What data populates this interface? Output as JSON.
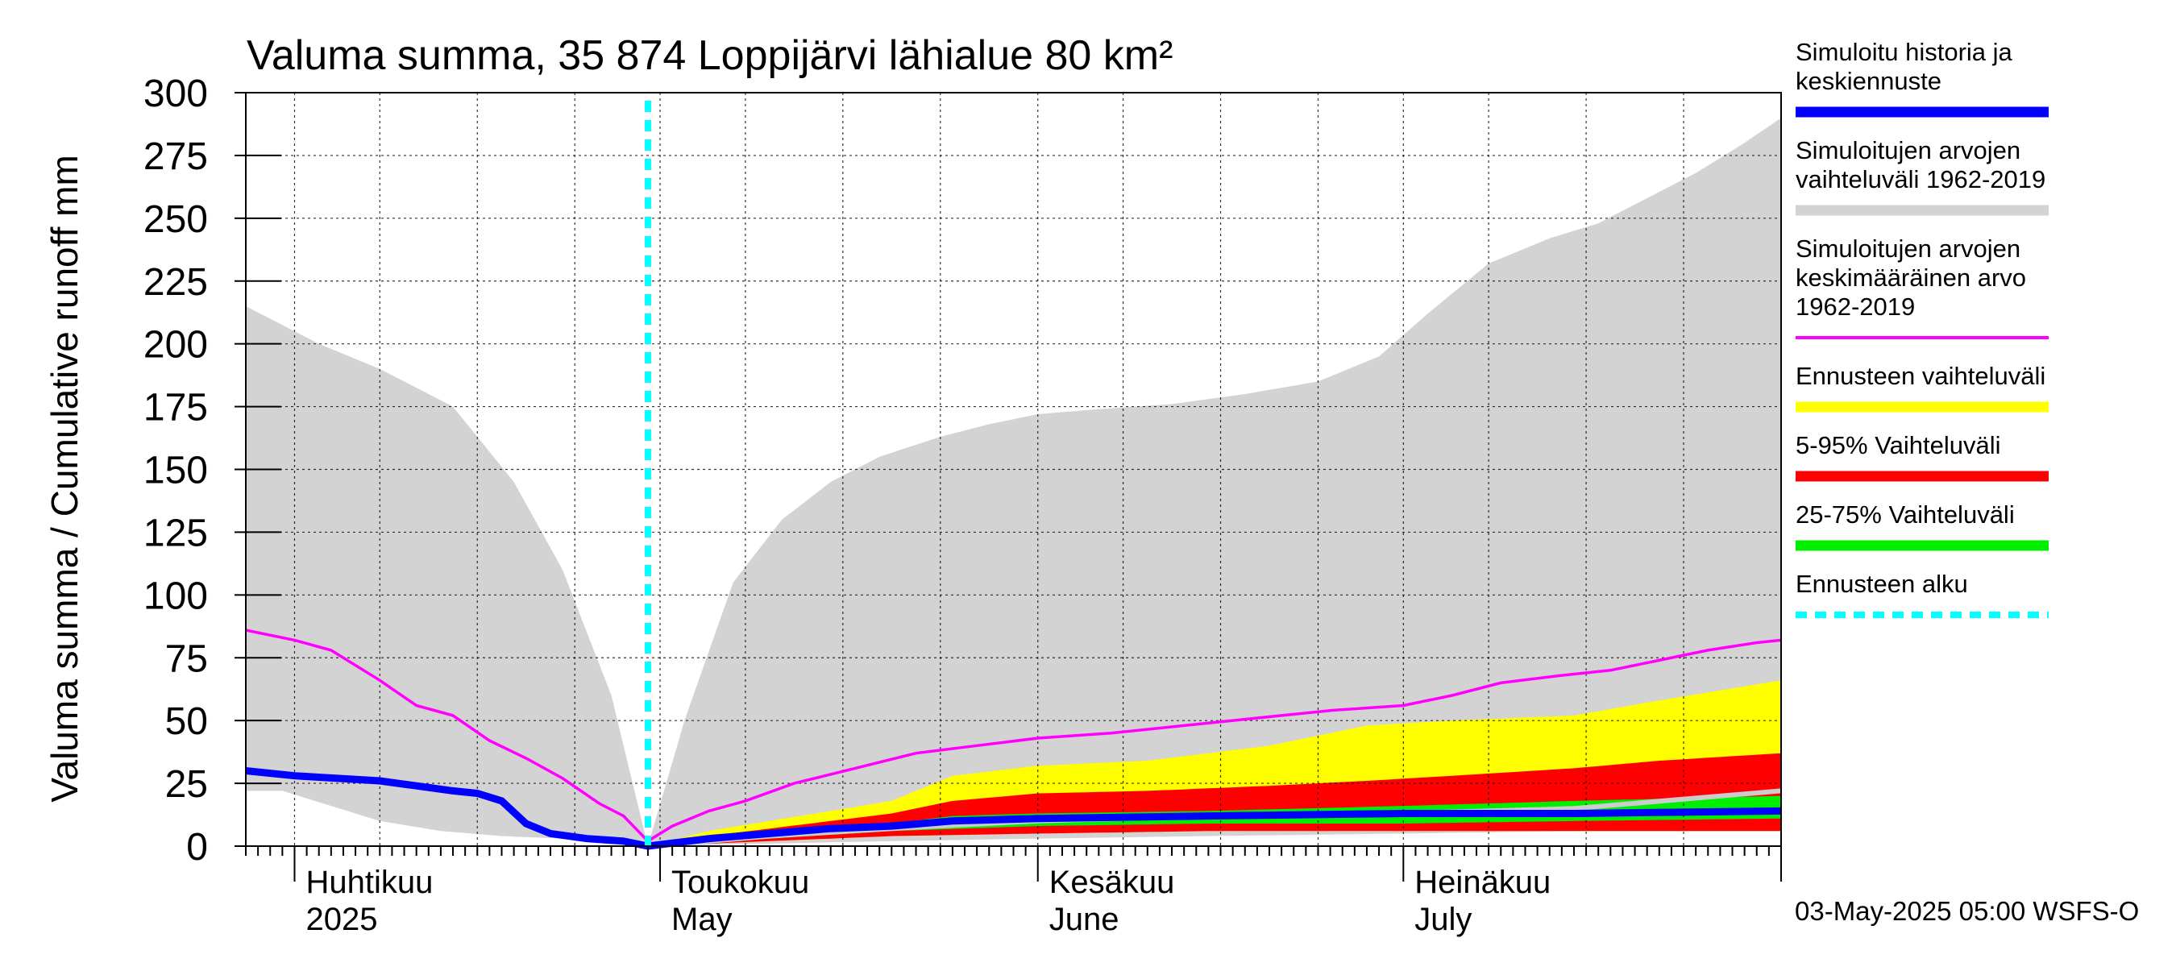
{
  "chart_data": {
    "type": "area",
    "title": "Valuma summa, 35 874 Loppijärvi lähialue 80 km²",
    "ylabel": "Valuma summa / Cumulative runoff    mm",
    "ylim": [
      0,
      300
    ],
    "yticks": [
      0,
      25,
      50,
      75,
      100,
      125,
      150,
      175,
      200,
      225,
      250,
      275,
      300
    ],
    "x_range": [
      "2025-03-28",
      "2025-08-01"
    ],
    "month_labels": [
      {
        "date": "2025-04-01",
        "fi": "Huhtikuu",
        "en": "2025"
      },
      {
        "date": "2025-05-01",
        "fi": "Toukokuu",
        "en": "May"
      },
      {
        "date": "2025-06-01",
        "fi": "Kesäkuu",
        "en": "June"
      },
      {
        "date": "2025-07-01",
        "fi": "Heinäkuu",
        "en": "July"
      }
    ],
    "forecast_start": "2025-04-30",
    "footer": "03-May-2025 05:00 WSFS-O",
    "grid": true,
    "legend_position": "right",
    "colors": {
      "history": "#0000ff",
      "range_1962_2019": "#d3d3d3",
      "mean_1962_2019": "#ff00ff",
      "forecast_range": "#ffff00",
      "p5_95": "#ff0000",
      "p25_75": "#00ee00",
      "forecast_start": "#00ffff",
      "forecast_median": "#cccccc"
    },
    "legend": [
      {
        "label": "Simuloitu historia ja keskiennuste",
        "lines": [
          "Simuloitu historia ja",
          "keskiennuste"
        ],
        "color": "#0000ff",
        "style": "solid"
      },
      {
        "label": "Simuloitujen arvojen vaihteluväli 1962-2019",
        "lines": [
          "Simuloitujen arvojen",
          "vaihteluväli 1962-2019"
        ],
        "color": "#d3d3d3",
        "style": "solid"
      },
      {
        "label": "Simuloitujen arvojen keskimääräinen arvo 1962-2019",
        "lines": [
          "Simuloitujen arvojen",
          "keskimääräinen arvo",
          "   1962-2019"
        ],
        "color": "#ff00ff",
        "style": "thin"
      },
      {
        "label": "Ennusteen vaihteluväli",
        "lines": [
          "Ennusteen vaihteluväli"
        ],
        "color": "#ffff00",
        "style": "solid"
      },
      {
        "label": "5-95% Vaihteluväli",
        "lines": [
          "5-95% Vaihteluväli"
        ],
        "color": "#ff0000",
        "style": "solid"
      },
      {
        "label": "25-75% Vaihteluväli",
        "lines": [
          "25-75% Vaihteluväli"
        ],
        "color": "#00ee00",
        "style": "solid"
      },
      {
        "label": "Ennusteen alku",
        "lines": [
          "Ennusteen alku"
        ],
        "color": "#00ffff",
        "style": "dashed"
      }
    ],
    "series": {
      "range_upper": {
        "x": [
          "2025-03-28",
          "2025-04-03",
          "2025-04-08",
          "2025-04-14",
          "2025-04-19",
          "2025-04-23",
          "2025-04-27",
          "2025-04-30",
          "2025-05-03",
          "2025-05-07",
          "2025-05-11",
          "2025-05-15",
          "2025-05-19",
          "2025-05-24",
          "2025-05-28",
          "2025-06-01",
          "2025-06-06",
          "2025-06-12",
          "2025-06-18",
          "2025-06-24",
          "2025-06-29",
          "2025-07-03",
          "2025-07-08",
          "2025-07-13",
          "2025-07-17",
          "2025-07-21",
          "2025-07-25",
          "2025-07-29",
          "2025-08-01"
        ],
        "values": [
          215,
          200,
          190,
          175,
          145,
          110,
          60,
          0,
          50,
          105,
          130,
          145,
          155,
          163,
          168,
          172,
          174,
          176,
          180,
          185,
          195,
          212,
          232,
          242,
          248,
          258,
          268,
          280,
          290
        ]
      },
      "range_lower": {
        "x": [
          "2025-03-28",
          "2025-03-31",
          "2025-04-04",
          "2025-04-08",
          "2025-04-13",
          "2025-04-18",
          "2025-04-23",
          "2025-04-27",
          "2025-04-30",
          "2025-05-10",
          "2025-05-20",
          "2025-06-01",
          "2025-06-15",
          "2025-07-01",
          "2025-07-15",
          "2025-08-01"
        ],
        "values": [
          22,
          22,
          16,
          10,
          6,
          4,
          3,
          2,
          0,
          1,
          2,
          3,
          4,
          5,
          6,
          7
        ]
      },
      "mean": {
        "x": [
          "2025-03-28",
          "2025-04-01",
          "2025-04-04",
          "2025-04-08",
          "2025-04-11",
          "2025-04-14",
          "2025-04-17",
          "2025-04-20",
          "2025-04-23",
          "2025-04-26",
          "2025-04-28",
          "2025-04-30",
          "2025-05-02",
          "2025-05-05",
          "2025-05-08",
          "2025-05-12",
          "2025-05-17",
          "2025-05-22",
          "2025-05-27",
          "2025-06-01",
          "2025-06-07",
          "2025-06-13",
          "2025-06-19",
          "2025-06-25",
          "2025-07-01",
          "2025-07-05",
          "2025-07-09",
          "2025-07-14",
          "2025-07-18",
          "2025-07-22",
          "2025-07-26",
          "2025-07-30",
          "2025-08-01"
        ],
        "values": [
          86,
          82,
          78,
          66,
          56,
          52,
          42,
          35,
          27,
          17,
          12,
          2,
          8,
          14,
          18,
          25,
          31,
          37,
          40,
          43,
          45,
          48,
          51,
          54,
          56,
          60,
          65,
          68,
          70,
          74,
          78,
          81,
          82
        ]
      },
      "history": {
        "x": [
          "2025-03-28",
          "2025-04-01",
          "2025-04-08",
          "2025-04-11",
          "2025-04-14",
          "2025-04-16",
          "2025-04-18",
          "2025-04-20",
          "2025-04-22",
          "2025-04-25",
          "2025-04-28",
          "2025-04-30"
        ],
        "values": [
          30,
          28,
          26,
          24,
          22,
          21,
          18,
          9,
          5,
          3,
          2,
          0
        ]
      },
      "forecast_median": {
        "x": [
          "2025-04-30",
          "2025-05-10",
          "2025-05-20",
          "2025-06-01",
          "2025-06-15",
          "2025-07-01",
          "2025-07-15",
          "2025-08-01"
        ],
        "values": [
          0,
          4,
          7,
          10,
          12,
          13,
          15,
          22
        ]
      },
      "yellow_upper": {
        "x": [
          "2025-04-30",
          "2025-05-05",
          "2025-05-10",
          "2025-05-15",
          "2025-05-20",
          "2025-05-25",
          "2025-06-01",
          "2025-06-10",
          "2025-06-20",
          "2025-06-28",
          "2025-07-05",
          "2025-07-15",
          "2025-07-22",
          "2025-08-01"
        ],
        "values": [
          0,
          6,
          10,
          14,
          18,
          28,
          32,
          34,
          40,
          48,
          50,
          52,
          58,
          66
        ]
      },
      "red_upper": {
        "x": [
          "2025-04-30",
          "2025-05-05",
          "2025-05-10",
          "2025-05-15",
          "2025-05-20",
          "2025-05-25",
          "2025-06-01",
          "2025-06-10",
          "2025-06-20",
          "2025-06-28",
          "2025-07-05",
          "2025-07-15",
          "2025-07-22",
          "2025-08-01"
        ],
        "values": [
          0,
          4,
          7,
          10,
          13,
          18,
          21,
          22,
          24,
          26,
          28,
          31,
          34,
          37
        ]
      },
      "green_upper": {
        "x": [
          "2025-04-30",
          "2025-05-10",
          "2025-05-20",
          "2025-05-25",
          "2025-06-01",
          "2025-06-15",
          "2025-07-01",
          "2025-07-15",
          "2025-08-01"
        ],
        "values": [
          0,
          5,
          9,
          12,
          13,
          14,
          16,
          18,
          20
        ]
      },
      "green_lower": {
        "x": [
          "2025-04-30",
          "2025-05-10",
          "2025-05-20",
          "2025-06-01",
          "2025-06-15",
          "2025-07-01",
          "2025-07-15",
          "2025-08-01"
        ],
        "values": [
          0,
          3,
          6,
          8,
          9,
          9,
          10,
          11
        ]
      },
      "red_lower": {
        "x": [
          "2025-04-30",
          "2025-05-10",
          "2025-05-20",
          "2025-06-01",
          "2025-06-15",
          "2025-07-01",
          "2025-07-15",
          "2025-08-01"
        ],
        "values": [
          0,
          2,
          4,
          5,
          6,
          6,
          6,
          6
        ]
      },
      "mean_forecast": {
        "x": [
          "2025-04-30",
          "2025-05-05",
          "2025-05-10",
          "2025-05-15",
          "2025-05-20",
          "2025-05-25",
          "2025-06-01",
          "2025-06-15",
          "2025-07-01",
          "2025-07-15",
          "2025-08-01"
        ],
        "values": [
          0,
          3,
          5,
          7,
          8,
          10,
          11,
          12,
          13,
          13,
          14
        ]
      }
    }
  }
}
